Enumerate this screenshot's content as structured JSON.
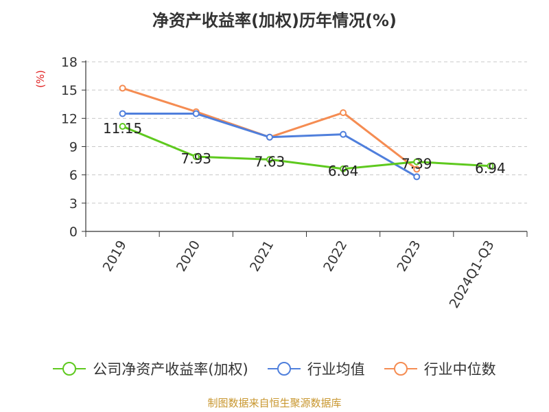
{
  "title": "净资产收益率(加权)历年情况(%)",
  "y_unit": "(%)",
  "source": "制图数据来自恒生聚源数据库",
  "colors": {
    "company": "#5ec91e",
    "industry_avg": "#4f7fdc",
    "industry_median": "#f58c52"
  },
  "chart_data": {
    "type": "line",
    "title": "净资产收益率(加权)历年情况(%)",
    "ylabel": "(%)",
    "categories": [
      "2019",
      "2020",
      "2021",
      "2022",
      "2023",
      "2024Q1-Q3"
    ],
    "ylim": [
      0,
      18
    ],
    "yticks": [
      0,
      3,
      6,
      9,
      12,
      15,
      18
    ],
    "grid": true,
    "legend_position": "bottom",
    "series": [
      {
        "name": "公司净资产收益率(加权)",
        "key": "company",
        "values": [
          11.15,
          7.93,
          7.63,
          6.64,
          7.39,
          6.94
        ],
        "labels": [
          "11.15",
          "7.93",
          "7.63",
          "6.64",
          "7.39",
          "6.94"
        ]
      },
      {
        "name": "行业均值",
        "key": "industry_avg",
        "values": [
          12.5,
          12.5,
          10.0,
          10.3,
          5.8,
          null
        ]
      },
      {
        "name": "行业中位数",
        "key": "industry_median",
        "values": [
          15.2,
          12.7,
          10.0,
          12.6,
          6.6,
          null
        ]
      }
    ]
  }
}
